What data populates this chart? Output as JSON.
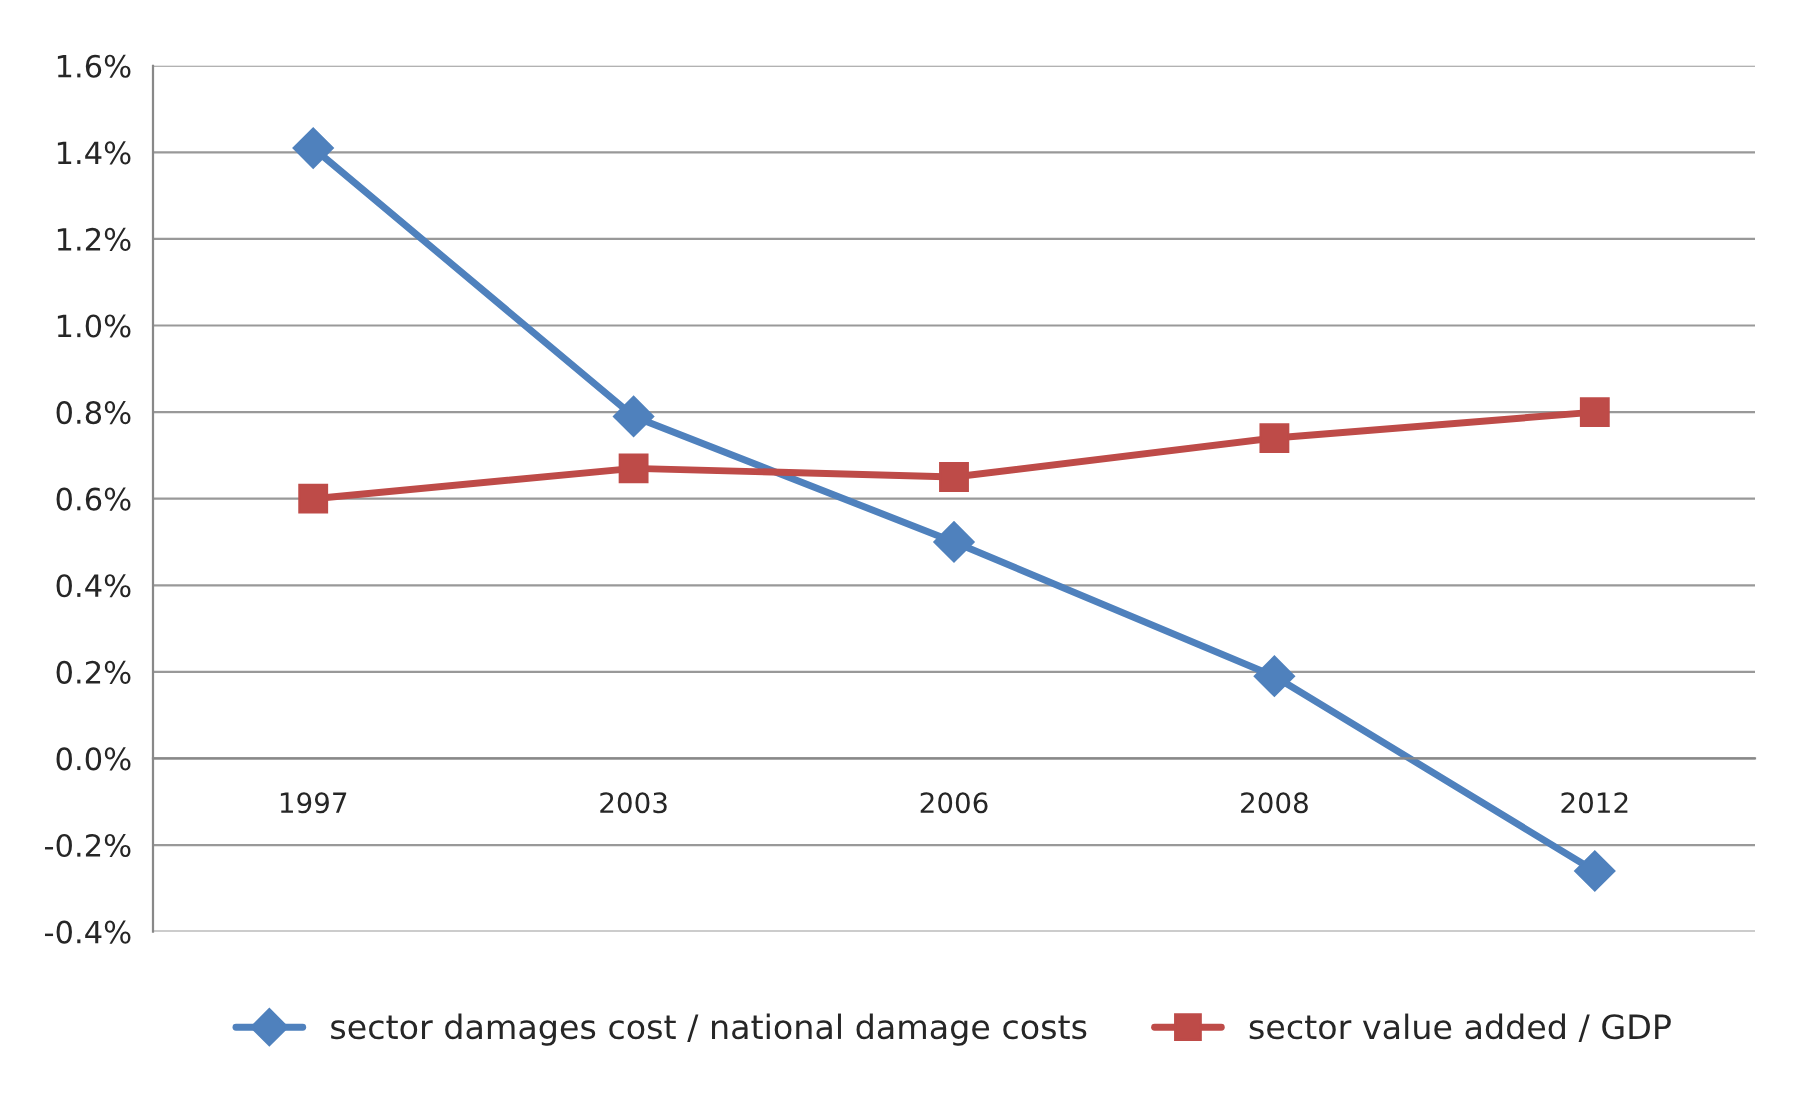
{
  "chart_data": {
    "type": "line",
    "categories": [
      "1997",
      "2003",
      "2006",
      "2008",
      "2012"
    ],
    "series": [
      {
        "name": "sector damages cost / national damage costs",
        "color": "#4f81bd",
        "marker": "diamond",
        "values": [
          1.41,
          0.79,
          0.5,
          0.19,
          -0.26
        ]
      },
      {
        "name": "sector value added / GDP",
        "color": "#be4b48",
        "marker": "square",
        "values": [
          0.6,
          0.67,
          0.65,
          0.74,
          0.8
        ]
      }
    ],
    "ylim": [
      -0.4,
      1.6
    ],
    "yticks": [
      {
        "value": -0.4,
        "label": "-0.4%"
      },
      {
        "value": -0.2,
        "label": "-0.2%"
      },
      {
        "value": 0.0,
        "label": "0.0%"
      },
      {
        "value": 0.2,
        "label": "0.2%"
      },
      {
        "value": 0.4,
        "label": "0.4%"
      },
      {
        "value": 0.6,
        "label": "0.6%"
      },
      {
        "value": 0.8,
        "label": "0.8%"
      },
      {
        "value": 1.0,
        "label": "1.0%"
      },
      {
        "value": 1.2,
        "label": "1.2%"
      },
      {
        "value": 1.4,
        "label": "1.4%"
      },
      {
        "value": 1.6,
        "label": "1.6%"
      }
    ],
    "grid": "y",
    "legend": "bottom",
    "line_style": "solid"
  }
}
